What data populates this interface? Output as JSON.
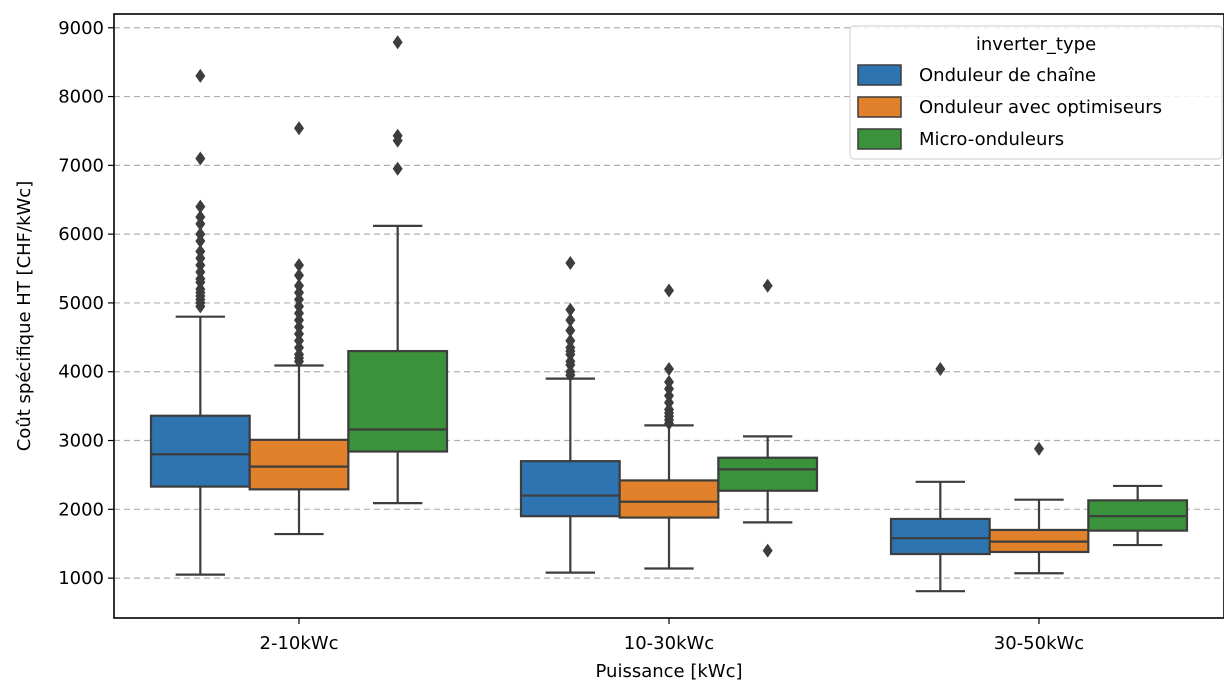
{
  "chart_data": {
    "type": "boxplot",
    "xlabel": "Puissance [kWc]",
    "ylabel": "Coût spécifique HT [CHF/kWc]",
    "categories": [
      "2-10kWc",
      "10-30kWc",
      "30-50kWc"
    ],
    "ylim": [
      420,
      9200
    ],
    "yticks": [
      1000,
      2000,
      3000,
      4000,
      5000,
      6000,
      7000,
      8000,
      9000
    ],
    "grid": "y-dashed",
    "legend": {
      "title": "inverter_type",
      "placement": "top-right"
    },
    "series": [
      {
        "name": "Onduleur de chaîne",
        "color": "#2e74b0",
        "boxes": [
          {
            "whislo": 1050,
            "q1": 2330,
            "med": 2800,
            "q3": 3360,
            "whishi": 4800,
            "fliers": [
              4950,
              5000,
              5050,
              5100,
              5150,
              5200,
              5300,
              5350,
              5450,
              5550,
              5650,
              5750,
              5900,
              6000,
              6150,
              6250,
              6400,
              7100,
              8300
            ]
          },
          {
            "whislo": 1080,
            "q1": 1900,
            "med": 2200,
            "q3": 2700,
            "whishi": 3900,
            "fliers": [
              3950,
              4000,
              4100,
              4150,
              4250,
              4300,
              4350,
              4450,
              4600,
              4750,
              4900,
              5580
            ]
          },
          {
            "whislo": 810,
            "q1": 1350,
            "med": 1580,
            "q3": 1860,
            "whishi": 2400,
            "fliers": [
              4040
            ]
          }
        ]
      },
      {
        "name": "Onduleur avec optimiseurs",
        "color": "#e1812c",
        "boxes": [
          {
            "whislo": 1640,
            "q1": 2290,
            "med": 2620,
            "q3": 3010,
            "whishi": 4090,
            "fliers": [
              4150,
              4200,
              4250,
              4350,
              4450,
              4550,
              4650,
              4750,
              4850,
              4950,
              5050,
              5150,
              5250,
              5400,
              5550,
              7540
            ]
          },
          {
            "whislo": 1140,
            "q1": 1880,
            "med": 2110,
            "q3": 2420,
            "whishi": 3220,
            "fliers": [
              3250,
              3300,
              3350,
              3400,
              3450,
              3550,
              3650,
              3750,
              3850,
              4040,
              5180
            ]
          },
          {
            "whislo": 1070,
            "q1": 1380,
            "med": 1530,
            "q3": 1700,
            "whishi": 2140,
            "fliers": [
              2880
            ]
          }
        ]
      },
      {
        "name": "Micro-onduleurs",
        "color": "#3a923a",
        "boxes": [
          {
            "whislo": 2090,
            "q1": 2840,
            "med": 3160,
            "q3": 4300,
            "whishi": 6120,
            "fliers": [
              6950,
              7360,
              7430,
              8790
            ]
          },
          {
            "whislo": 1810,
            "q1": 2270,
            "med": 2580,
            "q3": 2750,
            "whishi": 3060,
            "fliers": [
              1400,
              5250
            ]
          },
          {
            "whislo": 1480,
            "q1": 1690,
            "med": 1900,
            "q3": 2130,
            "whishi": 2340,
            "fliers": []
          }
        ]
      }
    ]
  }
}
